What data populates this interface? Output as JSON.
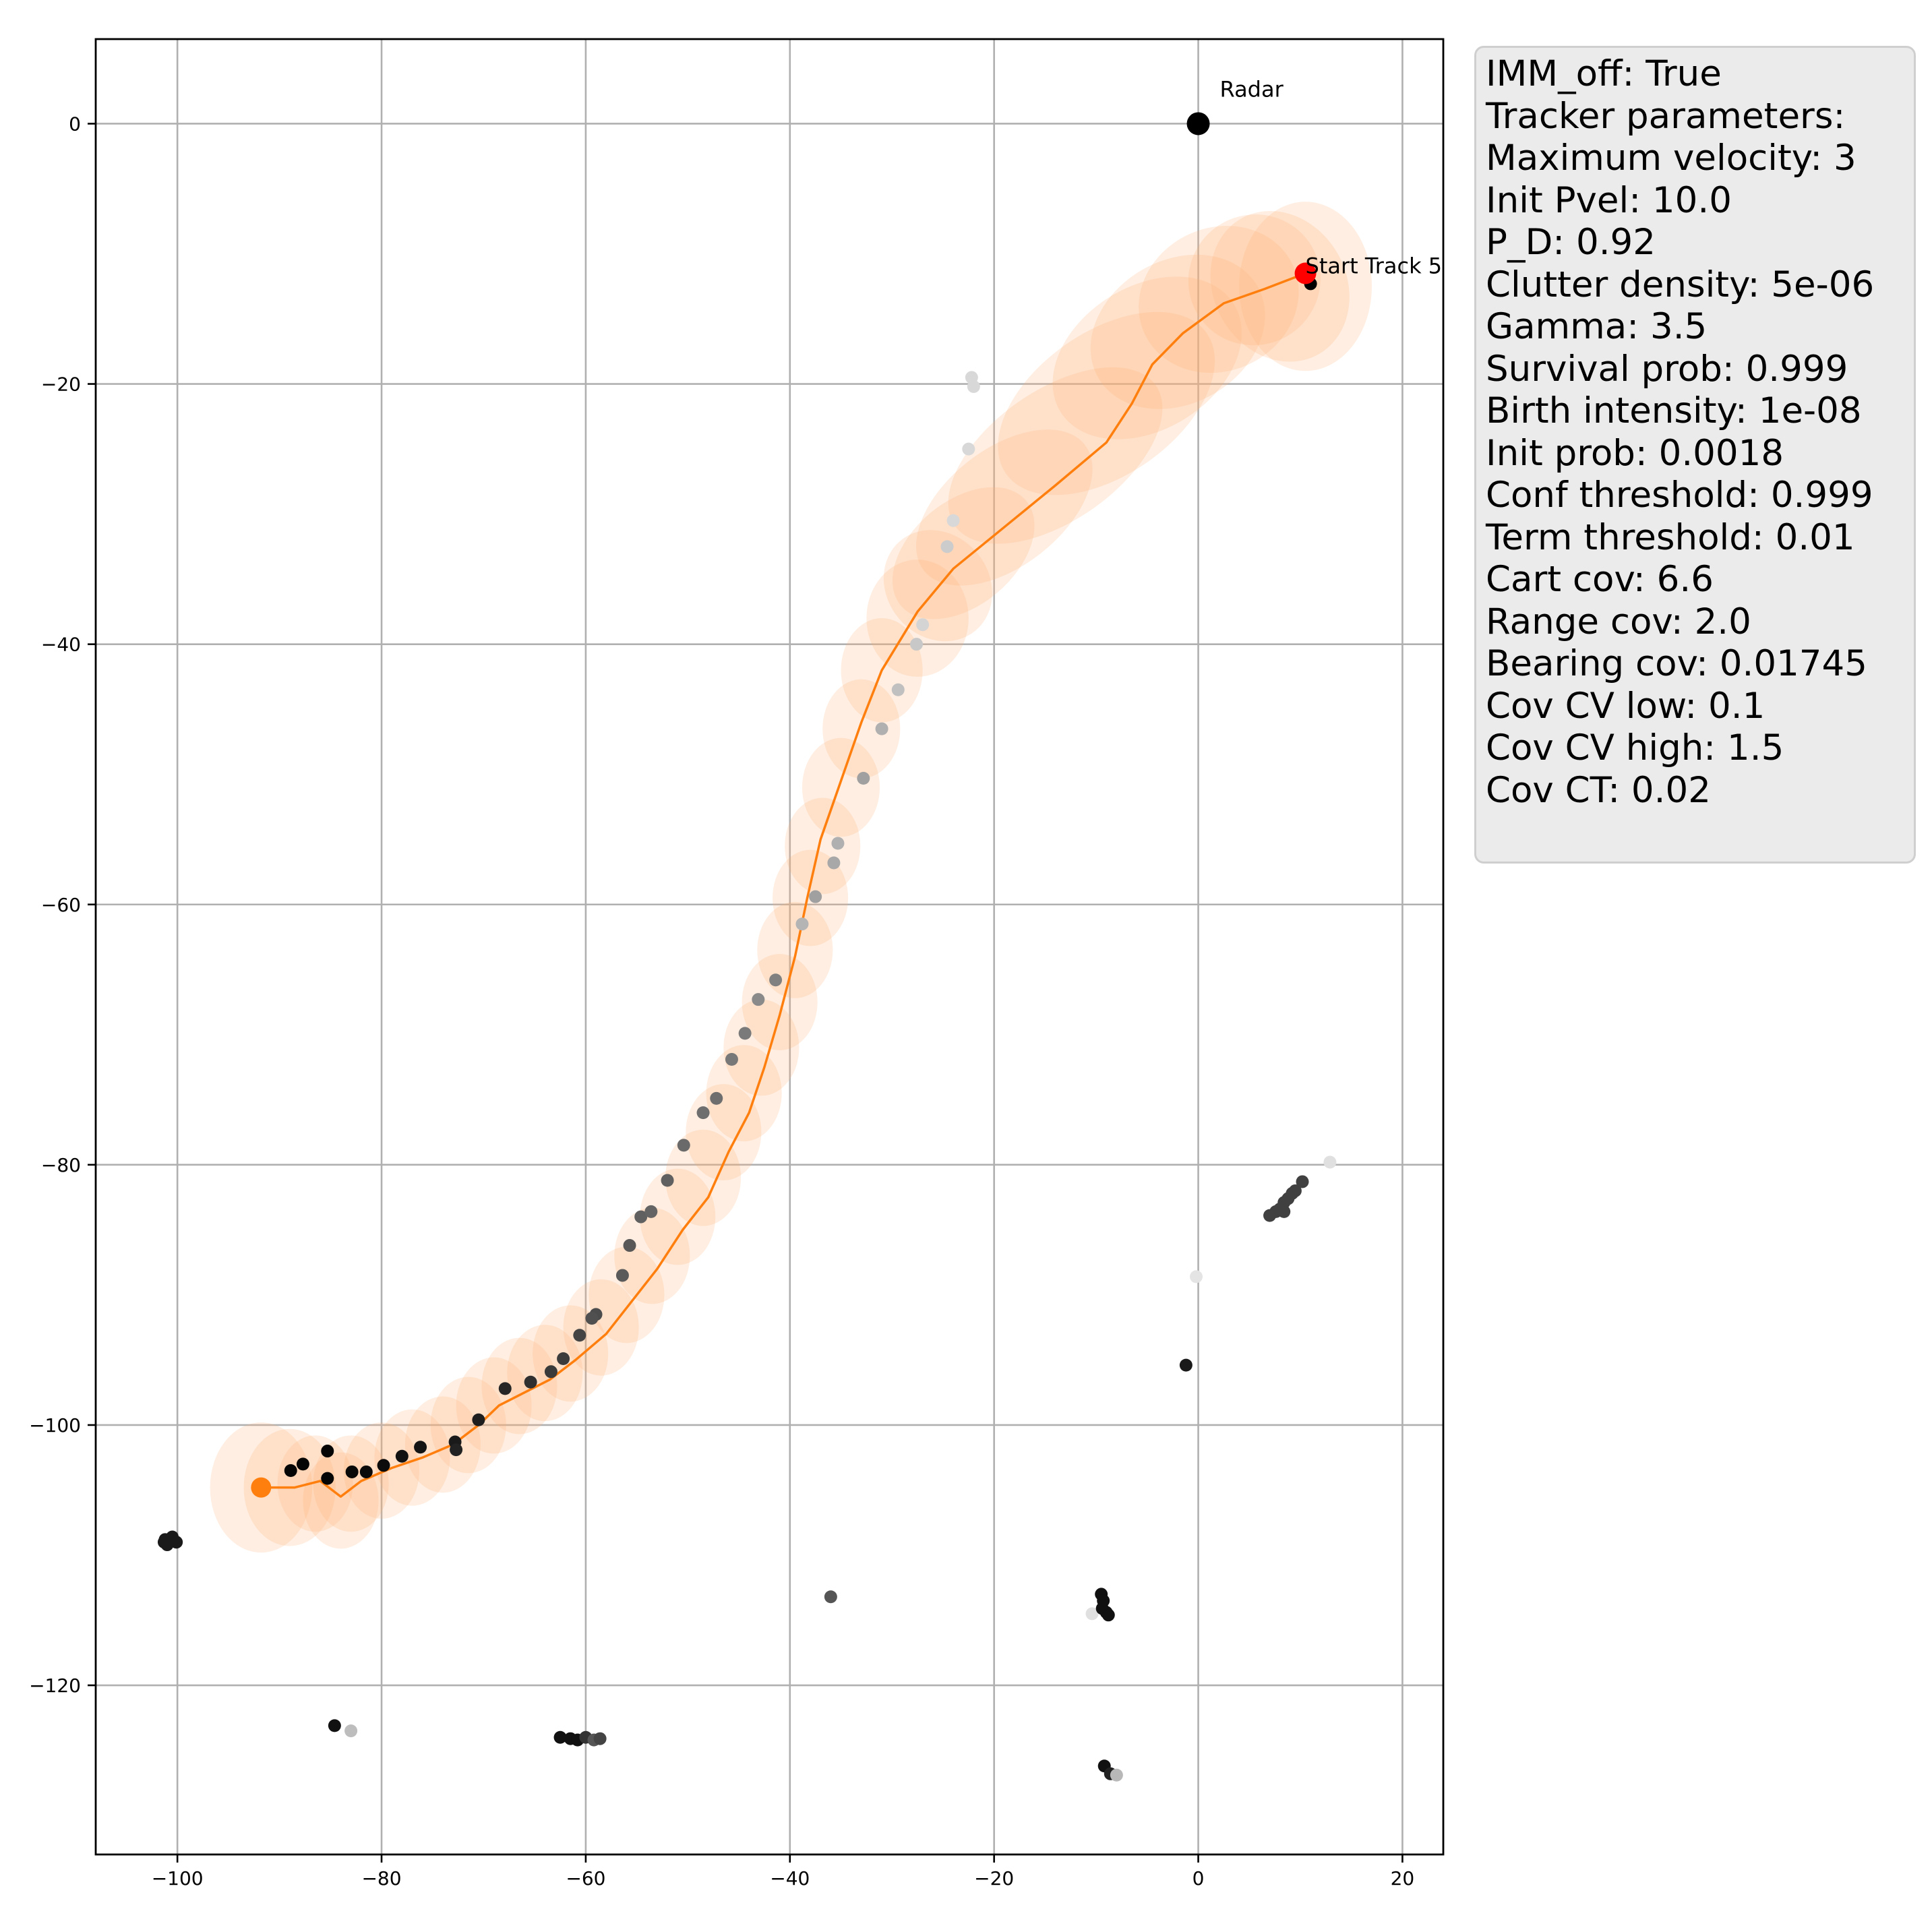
{
  "chart_data": {
    "type": "scatter",
    "title": "",
    "xlabel": "",
    "ylabel": "",
    "xlim": [
      -108,
      24
    ],
    "ylim": [
      -133,
      6.5
    ],
    "xticks": [
      -100,
      -80,
      -60,
      -40,
      -20,
      0,
      20
    ],
    "yticks": [
      0,
      -20,
      -40,
      -60,
      -80,
      -100,
      -120
    ],
    "xtick_labels": [
      "−100",
      "−80",
      "−60",
      "−40",
      "−20",
      "0",
      "20"
    ],
    "ytick_labels": [
      "0",
      "−20",
      "−40",
      "−60",
      "−80",
      "−100",
      "−120"
    ],
    "grid": true,
    "radar": {
      "x": 0,
      "y": 0,
      "label": "Radar"
    },
    "track": {
      "start_label": "Start Track 5",
      "start_point": [
        10.5,
        -11.5
      ],
      "end_point": [
        -91.8,
        -104.8
      ],
      "color": "#ff7f0e",
      "estimates": [
        [
          10.5,
          -11.5
        ],
        [
          6.5,
          -12.7
        ],
        [
          2.5,
          -13.8
        ],
        [
          -1.5,
          -16.1
        ],
        [
          -4.5,
          -18.5
        ],
        [
          -6.5,
          -21.5
        ],
        [
          -9.0,
          -24.5
        ],
        [
          -14.0,
          -27.8
        ],
        [
          -19.0,
          -31.0
        ],
        [
          -24.0,
          -34.2
        ],
        [
          -27.5,
          -37.5
        ],
        [
          -31.0,
          -42.0
        ],
        [
          -33.0,
          -46.0
        ],
        [
          -35.0,
          -50.5
        ],
        [
          -37.0,
          -55.0
        ],
        [
          -38.3,
          -59.5
        ],
        [
          -39.5,
          -64.0
        ],
        [
          -41.0,
          -68.5
        ],
        [
          -42.5,
          -72.5
        ],
        [
          -44.0,
          -76.0
        ],
        [
          -46.0,
          -79.0
        ],
        [
          -48.0,
          -82.5
        ],
        [
          -50.5,
          -85.0
        ],
        [
          -53.0,
          -88.0
        ],
        [
          -55.5,
          -90.5
        ],
        [
          -58.0,
          -93.0
        ],
        [
          -61.0,
          -95.0
        ],
        [
          -63.5,
          -96.5
        ],
        [
          -66.0,
          -97.5
        ],
        [
          -68.5,
          -98.5
        ],
        [
          -70.5,
          -100.0
        ],
        [
          -73.0,
          -101.5
        ],
        [
          -76.0,
          -102.5
        ],
        [
          -79.0,
          -103.3
        ],
        [
          -82.0,
          -104.3
        ],
        [
          -84.0,
          -105.5
        ],
        [
          -86.0,
          -104.3
        ],
        [
          -88.5,
          -104.8
        ],
        [
          -91.8,
          -104.8
        ]
      ],
      "covariance_ellipses": [
        {
          "cx": 10.5,
          "cy": -12.5,
          "rx": 6.5,
          "ry": 6.5,
          "angle": 0
        },
        {
          "cx": 8.0,
          "cy": -12.5,
          "rx": 6.5,
          "ry": 6.0,
          "angle": -30
        },
        {
          "cx": 5.5,
          "cy": -12.0,
          "rx": 6.5,
          "ry": 5.0,
          "angle": -30
        },
        {
          "cx": 2.0,
          "cy": -13.5,
          "rx": 8.0,
          "ry": 5.5,
          "angle": -25
        },
        {
          "cx": -2.0,
          "cy": -16.0,
          "rx": 9.0,
          "ry": 5.5,
          "angle": -30
        },
        {
          "cx": -5.0,
          "cy": -18.0,
          "rx": 10.0,
          "ry": 5.5,
          "angle": -32
        },
        {
          "cx": -9.0,
          "cy": -21.5,
          "rx": 12.0,
          "ry": 5.5,
          "angle": -35
        },
        {
          "cx": -14.0,
          "cy": -25.5,
          "rx": 12.0,
          "ry": 5.0,
          "angle": -35
        },
        {
          "cx": -19.0,
          "cy": -29.5,
          "rx": 10.0,
          "ry": 4.5,
          "angle": -38
        },
        {
          "cx": -23.0,
          "cy": -33.0,
          "rx": 8.0,
          "ry": 4.0,
          "angle": -40
        },
        {
          "cx": -25.5,
          "cy": -35.5,
          "rx": 5.0,
          "ry": 4.5,
          "angle": -40
        },
        {
          "cx": -27.5,
          "cy": -38.0,
          "rx": 5.0,
          "ry": 4.5,
          "angle": 0
        },
        {
          "cx": -31.0,
          "cy": -42.0,
          "rx": 4.0,
          "ry": 4.0,
          "angle": 0
        },
        {
          "cx": -33.0,
          "cy": -46.5,
          "rx": 3.8,
          "ry": 3.8,
          "angle": 0
        },
        {
          "cx": -35.0,
          "cy": -51.0,
          "rx": 3.8,
          "ry": 3.8,
          "angle": 0
        },
        {
          "cx": -36.8,
          "cy": -55.5,
          "rx": 3.7,
          "ry": 3.7,
          "angle": 0
        },
        {
          "cx": -38.0,
          "cy": -59.5,
          "rx": 3.7,
          "ry": 3.7,
          "angle": 0
        },
        {
          "cx": -39.5,
          "cy": -63.5,
          "rx": 3.7,
          "ry": 3.7,
          "angle": 0
        },
        {
          "cx": -41.0,
          "cy": -67.5,
          "rx": 3.7,
          "ry": 3.7,
          "angle": 0
        },
        {
          "cx": -42.8,
          "cy": -71.0,
          "rx": 3.7,
          "ry": 3.7,
          "angle": 0
        },
        {
          "cx": -44.5,
          "cy": -74.5,
          "rx": 3.7,
          "ry": 3.7,
          "angle": 0
        },
        {
          "cx": -46.5,
          "cy": -77.5,
          "rx": 3.7,
          "ry": 3.7,
          "angle": 0
        },
        {
          "cx": -48.5,
          "cy": -81.0,
          "rx": 3.7,
          "ry": 3.7,
          "angle": 0
        },
        {
          "cx": -51.0,
          "cy": -84.0,
          "rx": 3.7,
          "ry": 3.7,
          "angle": 0
        },
        {
          "cx": -53.5,
          "cy": -87.0,
          "rx": 3.7,
          "ry": 3.7,
          "angle": 0
        },
        {
          "cx": -56.0,
          "cy": -90.0,
          "rx": 3.7,
          "ry": 3.7,
          "angle": 0
        },
        {
          "cx": -58.5,
          "cy": -92.5,
          "rx": 3.7,
          "ry": 3.7,
          "angle": 0
        },
        {
          "cx": -61.5,
          "cy": -94.5,
          "rx": 3.7,
          "ry": 3.7,
          "angle": 0
        },
        {
          "cx": -64.0,
          "cy": -96.0,
          "rx": 3.7,
          "ry": 3.7,
          "angle": 0
        },
        {
          "cx": -66.5,
          "cy": -97.0,
          "rx": 3.7,
          "ry": 3.7,
          "angle": 0
        },
        {
          "cx": -69.0,
          "cy": -98.5,
          "rx": 3.7,
          "ry": 3.7,
          "angle": 0
        },
        {
          "cx": -71.5,
          "cy": -100.0,
          "rx": 3.7,
          "ry": 3.7,
          "angle": 0
        },
        {
          "cx": -74.0,
          "cy": -101.5,
          "rx": 3.7,
          "ry": 3.7,
          "angle": 0
        },
        {
          "cx": -77.0,
          "cy": -102.5,
          "rx": 3.7,
          "ry": 3.7,
          "angle": 0
        },
        {
          "cx": -80.0,
          "cy": -103.5,
          "rx": 3.7,
          "ry": 3.7,
          "angle": 0
        },
        {
          "cx": -83.0,
          "cy": -104.5,
          "rx": 3.7,
          "ry": 3.7,
          "angle": 0
        },
        {
          "cx": -84.0,
          "cy": -105.8,
          "rx": 3.7,
          "ry": 3.7,
          "angle": 0
        },
        {
          "cx": -86.5,
          "cy": -104.5,
          "rx": 3.7,
          "ry": 3.7,
          "angle": 0
        },
        {
          "cx": -89.0,
          "cy": -104.8,
          "rx": 4.5,
          "ry": 4.5,
          "angle": 0
        },
        {
          "cx": -91.8,
          "cy": -104.8,
          "rx": 5.0,
          "ry": 5.0,
          "angle": 0
        }
      ]
    },
    "measurements": [
      [
        11,
        -12.3,
        "#000000"
      ],
      [
        -22.2,
        -19.5,
        "#d8d8d8"
      ],
      [
        -22.0,
        -20.2,
        "#d8d8d8"
      ],
      [
        -22.5,
        -25.0,
        "#d8d8d8"
      ],
      [
        -24.0,
        -30.5,
        "#d8d8d8"
      ],
      [
        -24.6,
        -32.5,
        "#cccccc"
      ],
      [
        -27.0,
        -38.5,
        "#d4d4d4"
      ],
      [
        -27.6,
        -40.0,
        "#c8c8c8"
      ],
      [
        -29.4,
        -43.5,
        "#c0c0c0"
      ],
      [
        -31.0,
        -46.5,
        "#b0b0b0"
      ],
      [
        -32.8,
        -50.3,
        "#a0a0a0"
      ],
      [
        -35.3,
        -55.3,
        "#b0b0b0"
      ],
      [
        -35.7,
        -56.8,
        "#a8a8a8"
      ],
      [
        -37.5,
        -59.4,
        "#a0a0a0"
      ],
      [
        -38.8,
        -61.5,
        "#b4b4b4"
      ],
      [
        -41.4,
        -65.8,
        "#808080"
      ],
      [
        -43.1,
        -67.3,
        "#8a8a8a"
      ],
      [
        -44.4,
        -69.9,
        "#7a7a7a"
      ],
      [
        -45.7,
        -71.9,
        "#787878"
      ],
      [
        -47.2,
        -74.9,
        "#6e6e6e"
      ],
      [
        -48.5,
        -76.0,
        "#6e6e6e"
      ],
      [
        -50.4,
        -78.5,
        "#6a6a6a"
      ],
      [
        -52.0,
        -81.2,
        "#606060"
      ],
      [
        -54.6,
        -84.0,
        "#606060"
      ],
      [
        -53.6,
        -83.6,
        "#646464"
      ],
      [
        -55.7,
        -86.2,
        "#585858"
      ],
      [
        -56.4,
        -88.5,
        "#5a5a5a"
      ],
      [
        -59.0,
        -91.5,
        "#4c4c4c"
      ],
      [
        -59.4,
        -91.8,
        "#505050"
      ],
      [
        -60.6,
        -93.1,
        "#444444"
      ],
      [
        -62.2,
        -94.9,
        "#3c3c3c"
      ],
      [
        -63.4,
        -95.9,
        "#3a3a3a"
      ],
      [
        -65.4,
        -96.7,
        "#303030"
      ],
      [
        -67.9,
        -97.2,
        "#262626"
      ],
      [
        -70.5,
        -99.6,
        "#1e1e1e"
      ],
      [
        -72.8,
        -101.3,
        "#1a1a1a"
      ],
      [
        -72.7,
        -101.9,
        "#222222"
      ],
      [
        -76.2,
        -101.7,
        "#141414"
      ],
      [
        -78.0,
        -102.4,
        "#111111"
      ],
      [
        -79.8,
        -103.1,
        "#0c0c0c"
      ],
      [
        -81.5,
        -103.6,
        "#0a0a0a"
      ],
      [
        -82.9,
        -103.6,
        "#080808"
      ],
      [
        -85.3,
        -102.0,
        "#050505"
      ],
      [
        -85.3,
        -104.1,
        "#050505"
      ],
      [
        -87.7,
        -103.0,
        "#050505"
      ],
      [
        -88.9,
        -103.5,
        "#050505"
      ],
      [
        -101.2,
        -108.8,
        "#1a1a1a"
      ],
      [
        -101.0,
        -109.2,
        "#1a1a1a"
      ],
      [
        -100.5,
        -108.6,
        "#1a1a1a"
      ],
      [
        -100.1,
        -109.0,
        "#1a1a1a"
      ],
      [
        -101.3,
        -109.0,
        "#1a1a1a"
      ],
      [
        12.9,
        -79.8,
        "#e0e0e0"
      ],
      [
        10.2,
        -81.3,
        "#404040"
      ],
      [
        9.2,
        -82.2,
        "#404040"
      ],
      [
        8.8,
        -82.6,
        "#404040"
      ],
      [
        8.4,
        -82.9,
        "#404040"
      ],
      [
        8.0,
        -83.4,
        "#404040"
      ],
      [
        7.6,
        -83.6,
        "#404040"
      ],
      [
        7.0,
        -83.9,
        "#404040"
      ],
      [
        8.4,
        -83.6,
        "#404040"
      ],
      [
        9.5,
        -82.0,
        "#404040"
      ],
      [
        -0.2,
        -88.6,
        "#e4e4e4"
      ],
      [
        -1.2,
        -95.4,
        "#1a1a1a"
      ],
      [
        -36.0,
        -113.2,
        "#555555"
      ],
      [
        -10.4,
        -114.5,
        "#e0e0e0"
      ],
      [
        -9.5,
        -113.0,
        "#111111"
      ],
      [
        -9.3,
        -113.5,
        "#111111"
      ],
      [
        -9.4,
        -114.1,
        "#111111"
      ],
      [
        -9.0,
        -114.4,
        "#111111"
      ],
      [
        -8.8,
        -114.6,
        "#111111"
      ],
      [
        -84.6,
        -123.1,
        "#111111"
      ],
      [
        -83.0,
        -123.5,
        "#bdbdbd"
      ],
      [
        -62.5,
        -124.0,
        "#111111"
      ],
      [
        -61.5,
        -124.1,
        "#111111"
      ],
      [
        -60.8,
        -124.2,
        "#111111"
      ],
      [
        -60.0,
        -124.0,
        "#333333"
      ],
      [
        -59.2,
        -124.2,
        "#555555"
      ],
      [
        -58.6,
        -124.1,
        "#444444"
      ],
      [
        -9.2,
        -126.2,
        "#111111"
      ],
      [
        -8.6,
        -126.8,
        "#222222"
      ],
      [
        -8.0,
        -126.9,
        "#b8b8b8"
      ]
    ]
  },
  "legend": {
    "lines": [
      "IMM_off: True",
      "Tracker parameters:",
      "Maximum velocity: 3",
      "Init Pvel: 10.0",
      "P_D: 0.92",
      "Clutter density: 5e-06",
      "Gamma: 3.5",
      "Survival prob: 0.999",
      "Birth intensity: 1e-08",
      "Init prob: 0.0018",
      "Conf threshold: 0.999",
      "Term threshold: 0.01",
      "Cart cov: 6.6",
      "Range cov: 2.0",
      "Bearing cov: 0.01745",
      "Cov CV low: 0.1",
      "Cov CV high: 1.5",
      "Cov CT: 0.02"
    ]
  }
}
